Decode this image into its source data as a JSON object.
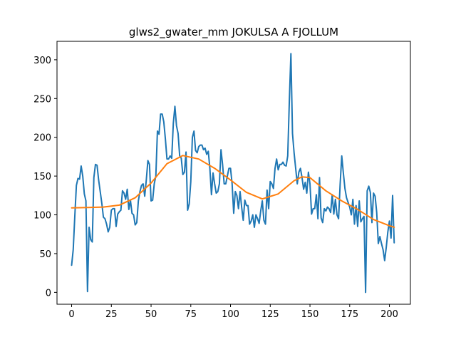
{
  "chart_data": {
    "type": "line",
    "title": "glws2_gwater_mm JOKULSA A FJOLLUM",
    "xlabel": "",
    "ylabel": "",
    "xlim": [
      -9.2,
      213.2
    ],
    "ylim": [
      -15.3,
      323.8
    ],
    "x_ticks": [
      0,
      25,
      50,
      75,
      100,
      125,
      150,
      175,
      200
    ],
    "y_ticks": [
      0,
      50,
      100,
      150,
      200,
      250,
      300
    ],
    "grid": false,
    "series": [
      {
        "color": "#1f77b4",
        "style": "raw",
        "values": [
          35,
          55,
          98,
          138,
          147,
          146,
          163,
          150,
          127,
          118,
          1,
          84,
          68,
          65,
          148,
          165,
          164,
          145,
          130,
          115,
          97,
          95,
          88,
          78,
          84,
          106,
          108,
          108,
          85,
          101,
          104,
          106,
          131,
          128,
          120,
          133,
          107,
          119,
          102,
          100,
          87,
          90,
          118,
          130,
          138,
          140,
          124,
          145,
          170,
          165,
          118,
          119,
          140,
          150,
          208,
          204,
          230,
          230,
          220,
          198,
          172,
          172,
          176,
          173,
          218,
          240,
          215,
          205,
          176,
          173,
          152,
          155,
          181,
          106,
          114,
          143,
          200,
          208,
          183,
          180,
          188,
          190,
          190,
          184,
          186,
          178,
          182,
          160,
          126,
          154,
          140,
          128,
          130,
          140,
          184,
          165,
          140,
          140,
          150,
          160,
          160,
          140,
          102,
          130,
          125,
          108,
          130,
          110,
          93,
          119,
          112,
          112,
          88,
          92,
          100,
          84,
          100,
          95,
          89,
          105,
          118,
          93,
          88,
          132,
          108,
          143,
          140,
          134,
          160,
          172,
          158,
          165,
          165,
          168,
          164,
          163,
          176,
          246,
          308,
          205,
          180,
          160,
          140,
          155,
          160,
          148,
          133,
          142,
          128,
          155,
          140,
          101,
          108,
          108,
          126,
          95,
          148,
          96,
          90,
          108,
          105,
          110,
          108,
          103,
          126,
          101,
          120,
          100,
          95,
          140,
          176,
          154,
          134,
          122,
          116,
          110,
          100,
          120,
          88,
          112,
          85,
          118,
          91,
          95,
          98,
          0,
          131,
          137,
          129,
          90,
          128,
          124,
          103,
          63,
          72,
          63,
          55,
          41,
          58,
          78,
          92,
          70,
          125,
          64
        ]
      },
      {
        "color": "#ff7f0e",
        "style": "smooth",
        "points": [
          [
            0,
            109
          ],
          [
            10,
            109.5
          ],
          [
            20,
            110
          ],
          [
            30,
            112.5
          ],
          [
            40,
            122
          ],
          [
            50,
            141
          ],
          [
            60,
            166
          ],
          [
            70,
            176.5
          ],
          [
            80,
            172
          ],
          [
            90,
            160
          ],
          [
            100,
            145
          ],
          [
            110,
            129
          ],
          [
            120,
            120.5
          ],
          [
            130,
            127
          ],
          [
            140,
            144
          ],
          [
            145,
            149
          ],
          [
            150,
            148
          ],
          [
            160,
            131
          ],
          [
            170,
            118
          ],
          [
            180,
            107
          ],
          [
            190,
            94
          ],
          [
            200,
            86
          ],
          [
            203,
            84
          ]
        ]
      }
    ]
  }
}
